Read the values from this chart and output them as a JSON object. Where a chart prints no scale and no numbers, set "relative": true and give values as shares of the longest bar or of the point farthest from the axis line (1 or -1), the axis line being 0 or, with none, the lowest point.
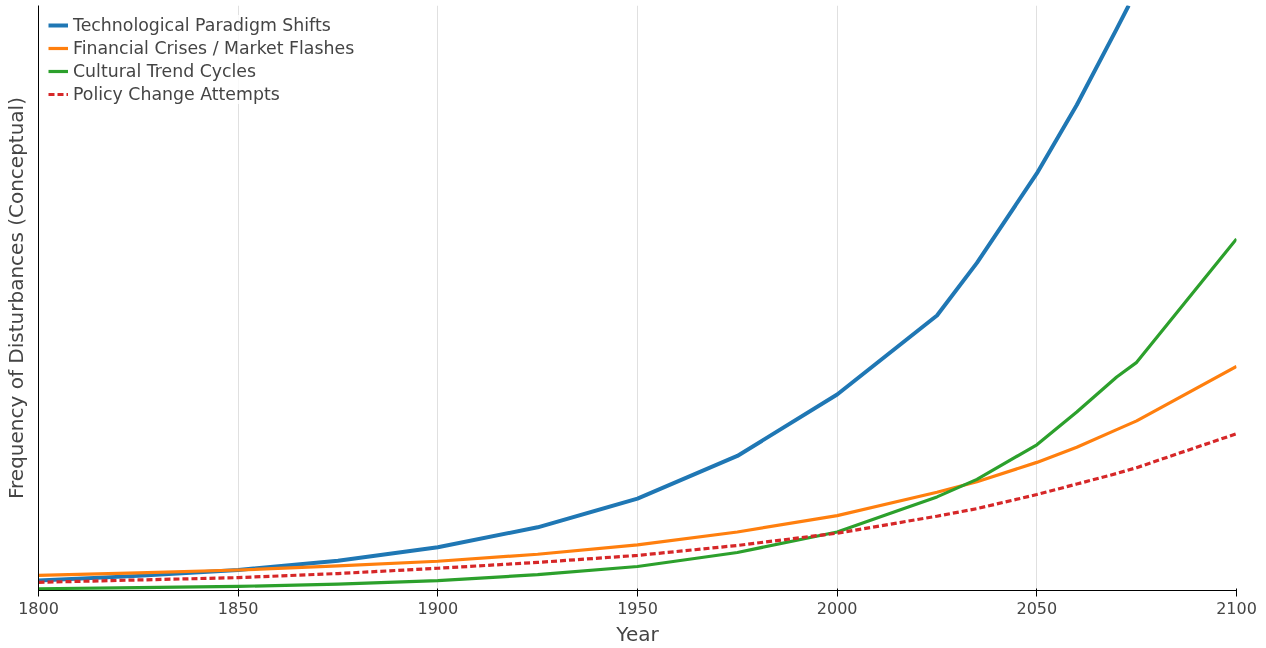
{
  "chart_data": {
    "type": "line",
    "xlabel": "Year",
    "ylabel": "Frequency of Disturbances (Conceptual)",
    "relative": true,
    "x": [
      1800,
      1825,
      1850,
      1875,
      1900,
      1925,
      1950,
      1975,
      2000,
      2025,
      2035,
      2050,
      2060,
      2070,
      2075,
      2100
    ],
    "series": [
      {
        "name": "Technological Paradigm Shifts",
        "color": "#1f77b4",
        "x": [
          1800,
          1825,
          1850,
          1875,
          1900,
          1925,
          1950,
          1975,
          2000,
          2025,
          2035,
          2050,
          2060,
          2070,
          2073
        ],
        "values": [
          0.017,
          0.025,
          0.035,
          0.051,
          0.074,
          0.108,
          0.157,
          0.23,
          0.335,
          0.47,
          0.56,
          0.713,
          0.83,
          0.96,
          1.0
        ]
      },
      {
        "name": "Financial Crises / Market Flashes",
        "color": "#ff7f0e",
        "values": [
          0.026,
          0.03,
          0.035,
          0.042,
          0.05,
          0.062,
          0.078,
          0.1,
          0.128,
          0.168,
          0.186,
          0.219,
          0.245,
          0.275,
          0.29,
          0.383
        ]
      },
      {
        "name": "Cultural Trend Cycles",
        "color": "#2ca02c",
        "values": [
          0.003,
          0.005,
          0.007,
          0.011,
          0.017,
          0.027,
          0.041,
          0.065,
          0.1,
          0.16,
          0.19,
          0.249,
          0.305,
          0.365,
          0.39,
          0.601
        ]
      },
      {
        "name": "Policy Change Attempts",
        "color": "#d62728",
        "line_style": "dashed",
        "values": [
          0.014,
          0.018,
          0.022,
          0.029,
          0.038,
          0.048,
          0.06,
          0.077,
          0.098,
          0.127,
          0.14,
          0.164,
          0.182,
          0.2,
          0.21,
          0.268
        ]
      }
    ],
    "xlim": [
      1800,
      2100
    ],
    "xticks": [
      1800,
      1850,
      1900,
      1950,
      2000,
      2050,
      2100
    ],
    "grid": "x",
    "legend": "top left",
    "line_style": "solid"
  }
}
